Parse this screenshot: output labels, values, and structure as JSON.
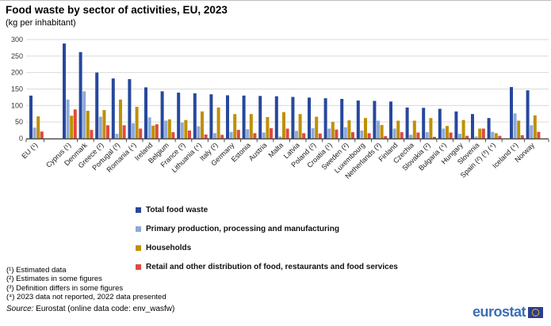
{
  "header": {
    "title": "Food waste by sector of activities, EU, 2023",
    "subtitle": "(kg per inhabitant)"
  },
  "chart_data": {
    "type": "bar",
    "title": "Food waste by sector of activities, EU, 2023",
    "unit_label": "(kg per inhabitant)",
    "ylabel": "",
    "xlabel": "",
    "ylim": [
      0,
      300
    ],
    "ytick_step": 50,
    "grid": true,
    "legend_position": "bottom",
    "categories": [
      "EU (¹)",
      "Cyprus (¹)",
      "Denmark",
      "Greece (²)",
      "Portugal (³)",
      "Romania (⁴)",
      "Ireland",
      "Belgium",
      "France (³)",
      "Lithuania (⁴)",
      "Italy (²)",
      "Germany",
      "Estonia",
      "Austria",
      "Malta",
      "Latvia",
      "Poland (²)",
      "Croatia (¹)",
      "Sweden (²)",
      "Luxembourg",
      "Netherlands (³)",
      "Finland",
      "Czechia",
      "Slovakia (²)",
      "Bulgaria (⁴)",
      "Hungary",
      "Slovenia",
      "Spain (²) (³) (⁴)",
      "Iceland (⁴)",
      "Norway"
    ],
    "gap_after_indices": [
      0,
      27
    ],
    "series": [
      {
        "name": "Total food waste",
        "color": "#27489C",
        "values": [
          130,
          288,
          262,
          200,
          182,
          180,
          155,
          143,
          139,
          137,
          134,
          131,
          130,
          129,
          128,
          126,
          124,
          122,
          120,
          115,
          114,
          112,
          94,
          93,
          90,
          82,
          74,
          62,
          156,
          146
        ]
      },
      {
        "name": "Primary production, processing and manufacturing",
        "color": "#8EA9DB",
        "values": [
          33,
          118,
          143,
          66,
          14,
          46,
          64,
          54,
          48,
          37,
          16,
          20,
          28,
          18,
          6,
          23,
          31,
          30,
          34,
          24,
          54,
          30,
          11,
          19,
          30,
          14,
          6,
          20,
          76,
          40
        ]
      },
      {
        "name": "Households",
        "color": "#BF9000",
        "values": [
          67,
          69,
          84,
          86,
          118,
          96,
          39,
          58,
          56,
          82,
          94,
          74,
          74,
          65,
          80,
          74,
          66,
          50,
          55,
          62,
          41,
          54,
          54,
          62,
          38,
          56,
          30,
          16,
          54,
          70
        ]
      },
      {
        "name": "Retail and other distribution of food, restaurants and food services",
        "color": "#E04A3E",
        "values": [
          21,
          88,
          26,
          40,
          40,
          30,
          43,
          19,
          24,
          12,
          11,
          26,
          16,
          31,
          30,
          16,
          15,
          27,
          19,
          16,
          7,
          19,
          18,
          5,
          18,
          8,
          30,
          8,
          10,
          20
        ]
      }
    ]
  },
  "footnotes": [
    "(¹) Estimated data",
    "(²) Estimates in some figures",
    "(³) Definition differs in some figures",
    "(⁴) 2023 data not reported, 2022 data presented"
  ],
  "source": {
    "label": "Source:",
    "text": " Eurostat (online data code: env_wasfw)"
  },
  "logo": {
    "text": "eurostat"
  },
  "colors": {
    "grid": "#DADADA",
    "axis": "#4d4d4d",
    "tick_text": "#333333",
    "eu_flag_blue": "#2B3F92",
    "eu_star_yellow": "#FFCC00",
    "logo_blue": "#3B6FB6"
  }
}
